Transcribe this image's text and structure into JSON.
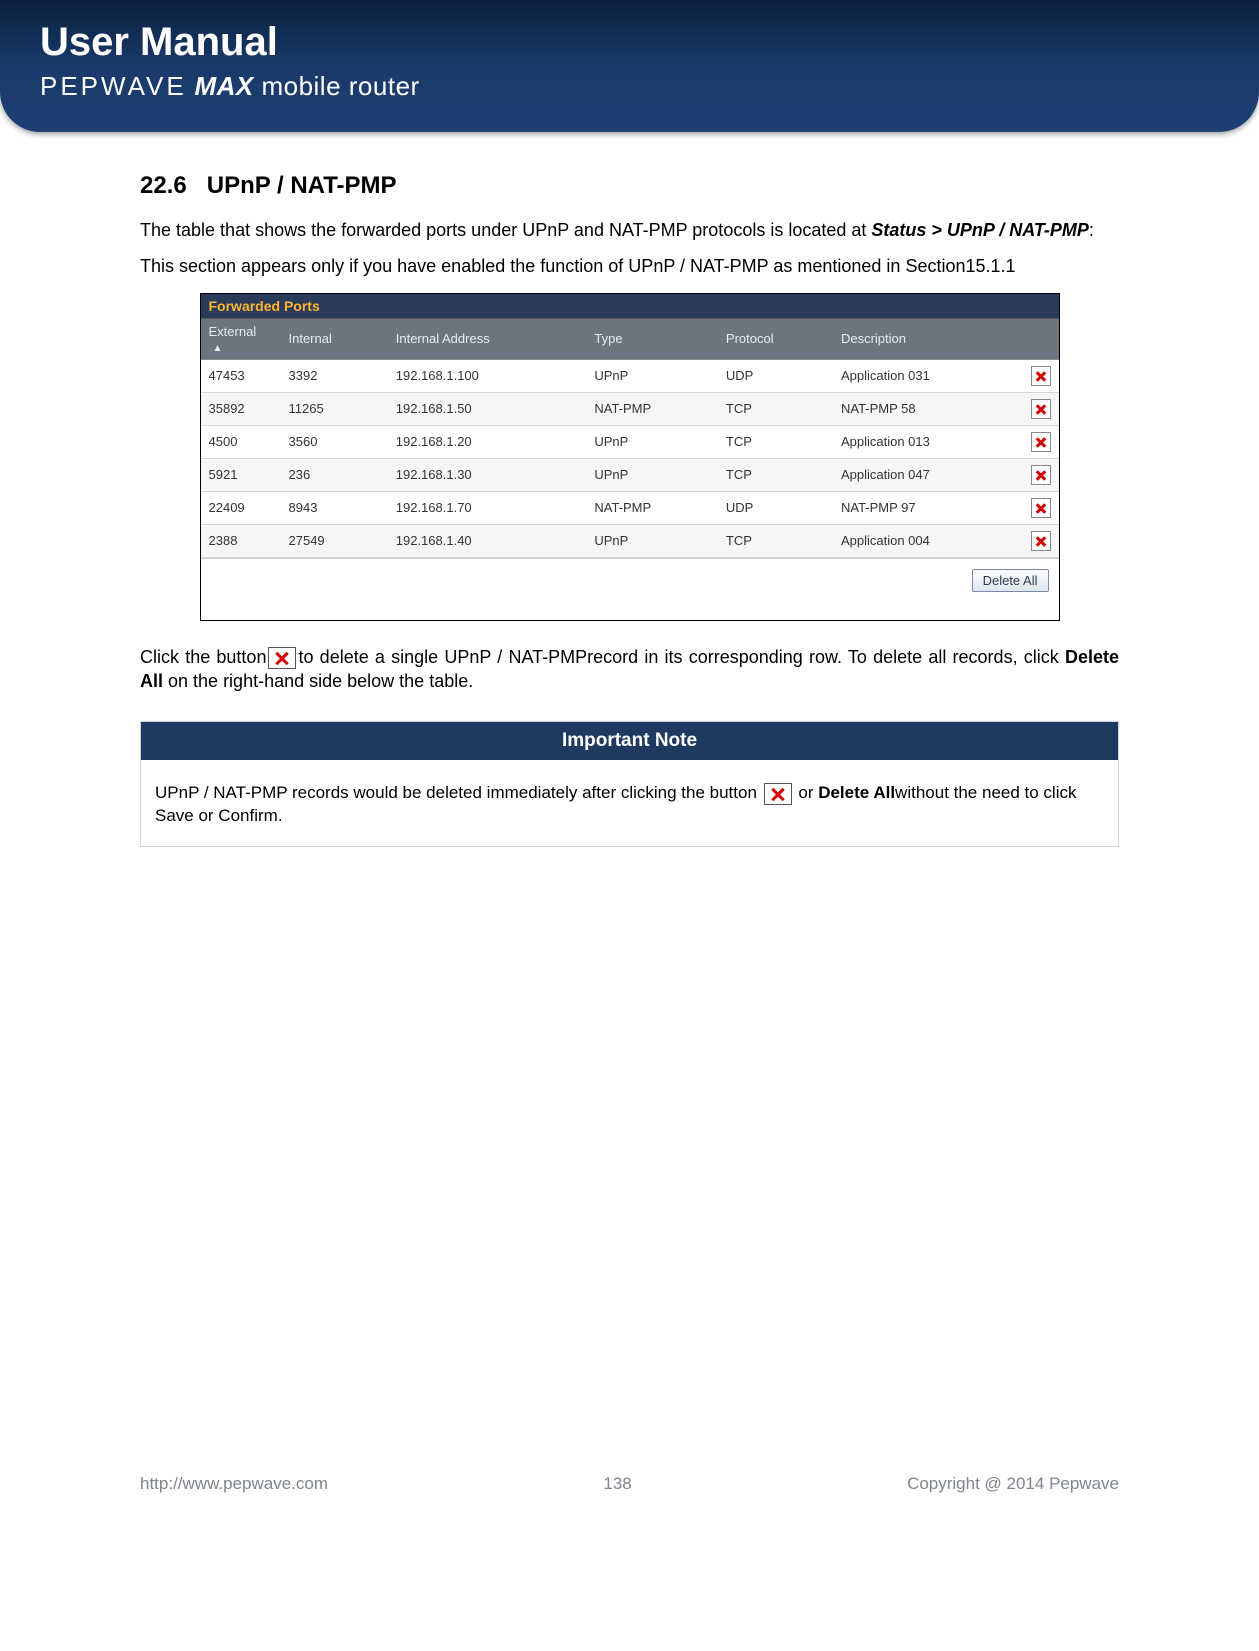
{
  "header": {
    "title": "User Manual",
    "brand": "PEPWAVE",
    "product": "MAX",
    "tagline": "mobile router"
  },
  "section": {
    "number": "22.6",
    "title": "UPnP / NAT-PMP"
  },
  "paragraphs": {
    "p1a": "The table that shows the forwarded ports under UPnP and NAT-PMP protocols is located at ",
    "p1b": "Status > UPnP / NAT-PMP",
    "p1c": ":",
    "p2": "This section appears only if you have enabled the function of UPnP / NAT-PMP as mentioned in Section15.1.1",
    "p3a": "Click the button",
    "p3b": "to delete a single UPnP / NAT-PMPrecord in its corresponding row. To delete all records, click ",
    "p3c": "Delete All",
    "p3d": " on the right-hand side below the table."
  },
  "forwarded_ports": {
    "panel_title": "Forwarded Ports",
    "columns": [
      "External",
      "Internal",
      "Internal Address",
      "Type",
      "Protocol",
      "Description"
    ],
    "sort_indicator": "▲",
    "rows": [
      {
        "external": "47453",
        "internal": "3392",
        "addr": "192.168.1.100",
        "type": "UPnP",
        "proto": "UDP",
        "desc": "Application 031"
      },
      {
        "external": "35892",
        "internal": "11265",
        "addr": "192.168.1.50",
        "type": "NAT-PMP",
        "proto": "TCP",
        "desc": "NAT-PMP 58"
      },
      {
        "external": "4500",
        "internal": "3560",
        "addr": "192.168.1.20",
        "type": "UPnP",
        "proto": "TCP",
        "desc": "Application 013"
      },
      {
        "external": "5921",
        "internal": "236",
        "addr": "192.168.1.30",
        "type": "UPnP",
        "proto": "TCP",
        "desc": "Application 047"
      },
      {
        "external": "22409",
        "internal": "8943",
        "addr": "192.168.1.70",
        "type": "NAT-PMP",
        "proto": "UDP",
        "desc": "NAT-PMP 97"
      },
      {
        "external": "2388",
        "internal": "27549",
        "addr": "192.168.1.40",
        "type": "UPnP",
        "proto": "TCP",
        "desc": "Application 004"
      }
    ],
    "delete_all_label": "Delete All"
  },
  "note": {
    "heading": "Important Note",
    "body_a": "UPnP / NAT-PMP records would be deleted immediately after clicking the button ",
    "body_b": " or ",
    "body_c": "Delete All",
    "body_d": "without the need to click Save or Confirm."
  },
  "footer": {
    "url": "http://www.pepwave.com",
    "page": "138",
    "copyright": "Copyright @ 2014 Pepwave"
  },
  "colors": {
    "header_gradient_top": "#0a1f3e",
    "header_gradient_bottom": "#1e3f72",
    "panel_title_bg": "#2a3b5a",
    "panel_title_fg": "#ffb530",
    "table_header_bg": "#6a7580",
    "note_header_bg": "#1f3a60",
    "delete_red": "#d40000",
    "footer_text": "#7f858c"
  }
}
